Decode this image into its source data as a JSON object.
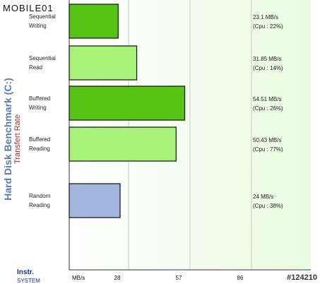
{
  "logo": {
    "text": "MOBILE01"
  },
  "side_title": "Hard Disk Benchmark (C:)",
  "side_subtitle": "Transfert Rate",
  "footer": {
    "instr": "Instr.",
    "system": "SYSTEM",
    "watermark": "#124210"
  },
  "colors": {
    "bar_green": "#55c412",
    "bar_lightgreen": "#a8f27a",
    "bar_blue": "#a2b6e0",
    "plot_bg": "#e8fbe0",
    "title_blue": "#5a7ab8",
    "subtitle_red": "#b02a2a",
    "instr_blue": "#1a2ea0"
  },
  "chart_data": {
    "type": "bar",
    "orientation": "horizontal",
    "categories": [
      [
        "Sequential",
        "Writing"
      ],
      [
        "Sequential",
        "Read"
      ],
      [
        "Buffered",
        "Writing"
      ],
      [
        "Buffered",
        "Reading"
      ],
      [
        "Random",
        "Reading"
      ]
    ],
    "values": [
      23.1,
      31.85,
      54.51,
      50.43,
      24
    ],
    "value_labels": [
      "23.1  MB/s",
      "31.85  MB/s",
      "54.51  MB/s",
      "50.43  MB/s",
      "24 MB/s"
    ],
    "cpu_labels": [
      "(Cpu : 22%)",
      "(Cpu : 14%)",
      "(Cpu : 26%)",
      "(Cpu : 77%)",
      "(Cpu : 38%)"
    ],
    "bar_colors": [
      "bar_green",
      "bar_lightgreen",
      "bar_green",
      "bar_lightgreen",
      "bar_blue"
    ],
    "x_unit_label": "MB/s",
    "x_ticks": [
      28,
      57,
      86
    ],
    "xlim": [
      0,
      114
    ],
    "grid": true
  }
}
